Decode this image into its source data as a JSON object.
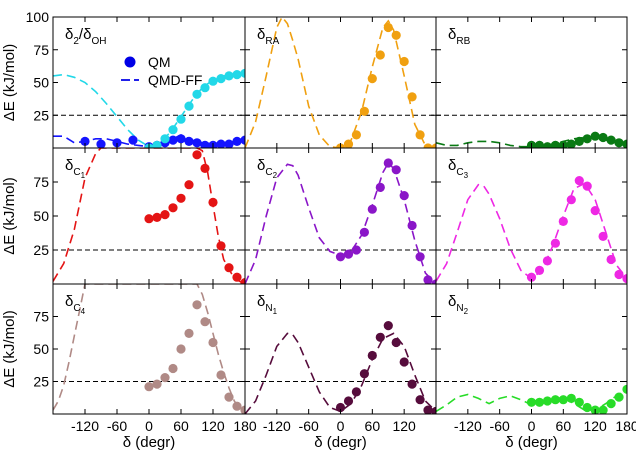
{
  "chart_data": {
    "type": "line",
    "layout": "3x3 panel grid",
    "legend": {
      "placement": "top-left panel, upper middle",
      "entries": [
        {
          "label": "QM",
          "marker": "filled-circle",
          "color": "#0000e6"
        },
        {
          "label": "QMD-FF",
          "marker": "dashed-line",
          "color": "#0000e6"
        }
      ]
    },
    "reference_line": {
      "y": 25,
      "style": "dashed",
      "color": "#000000"
    },
    "axes": {
      "xlabel": "δ (degr)",
      "ylabel": "ΔE (kJ/mol)",
      "xlim": [
        -180,
        180
      ],
      "xticks": [
        -120,
        -60,
        0,
        60,
        120,
        180
      ],
      "row_ylims": [
        [
          0,
          100
        ],
        [
          0,
          100
        ],
        [
          0,
          100
        ]
      ],
      "row_yticks": [
        [
          25,
          50,
          75,
          100
        ],
        [
          25,
          50,
          75
        ],
        [
          25,
          50,
          75
        ]
      ]
    },
    "panels": [
      {
        "row": 0,
        "col": 0,
        "title": "δ2/δOH",
        "color": "#0000e6",
        "series": [
          {
            "name": "QM",
            "color": "#1414ff",
            "x": [
              -120,
              -90,
              -60,
              -30,
              0,
              15,
              30,
              45,
              60,
              75,
              90,
              105,
              120,
              135,
              150,
              165,
              180
            ],
            "y": [
              5,
              3,
              4,
              6,
              1,
              2,
              4,
              6,
              7,
              5,
              4,
              2,
              2,
              3,
              3,
              5,
              6
            ]
          },
          {
            "name": "QMD-FF",
            "color": "#1414ff",
            "x": [
              -180,
              -160,
              -140,
              -120,
              -100,
              -80,
              -60,
              -40,
              -20,
              0,
              20,
              40,
              60,
              80,
              100,
              120,
              140,
              160,
              180
            ],
            "y": [
              9,
              9,
              4,
              5,
              7,
              7,
              5,
              3,
              2,
              1,
              2,
              6,
              10,
              6,
              4,
              3,
              4,
              5,
              7
            ]
          },
          {
            "name": "QM",
            "color": "#22d8e8",
            "x": [
              0,
              15,
              30,
              45,
              60,
              75,
              90,
              105,
              120,
              135,
              150,
              165,
              180
            ],
            "y": [
              0,
              2,
              7,
              14,
              22,
              32,
              41,
              46,
              51,
              53,
              55,
              56,
              57
            ]
          },
          {
            "name": "QMD-FF",
            "color": "#22d8e8",
            "x": [
              -180,
              -160,
              -140,
              -120,
              -100,
              -80,
              -60,
              -40,
              -20,
              0,
              20,
              40,
              60,
              80,
              100,
              120,
              140,
              160,
              180
            ],
            "y": [
              55,
              56,
              54,
              50,
              43,
              34,
              24,
              14,
              6,
              1,
              4,
              12,
              24,
              36,
              46,
              52,
              55,
              56,
              56
            ]
          }
        ]
      },
      {
        "row": 0,
        "col": 1,
        "title": "δRA",
        "color": "#f0a010",
        "series": [
          {
            "name": "QM",
            "x": [
              0,
              15,
              30,
              45,
              60,
              75,
              90,
              105,
              120,
              135,
              150,
              165,
              180
            ],
            "y": [
              0,
              3,
              10,
              28,
              53,
              71,
              92,
              86,
              66,
              39,
              10,
              0,
              0
            ]
          },
          {
            "name": "QMD-FF",
            "x": [
              -180,
              -160,
              -140,
              -120,
              -110,
              -100,
              -90,
              -80,
              -70,
              -60,
              -40,
              -20,
              0,
              20,
              40,
              60,
              80,
              90,
              100,
              120,
              140,
              160,
              180
            ],
            "y": [
              0,
              20,
              55,
              92,
              100,
              95,
              82,
              68,
              50,
              32,
              10,
              1,
              0,
              6,
              28,
              62,
              92,
              97,
              90,
              55,
              18,
              2,
              0
            ]
          }
        ]
      },
      {
        "row": 0,
        "col": 2,
        "title": "δRB",
        "color": "#0a7a14",
        "series": [
          {
            "name": "QM",
            "x": [
              0,
              15,
              30,
              45,
              60,
              75,
              90,
              105,
              120,
              135,
              150,
              165,
              180
            ],
            "y": [
              2,
              2,
              1,
              2,
              2,
              3,
              5,
              7,
              9,
              8,
              6,
              4,
              3
            ]
          },
          {
            "name": "QMD-FF",
            "x": [
              -180,
              -160,
              -140,
              -120,
              -100,
              -80,
              -60,
              -40,
              -20,
              0,
              20,
              40,
              60,
              80,
              100,
              120,
              140,
              160,
              180
            ],
            "y": [
              4,
              2,
              2,
              4,
              5,
              5,
              4,
              2,
              1,
              1,
              2,
              3,
              5,
              7,
              8,
              8,
              6,
              4,
              4
            ]
          }
        ]
      },
      {
        "row": 1,
        "col": 0,
        "title": "δC1",
        "color": "#e41414",
        "series": [
          {
            "name": "QM",
            "x": [
              0,
              15,
              30,
              45,
              60,
              75,
              90,
              105,
              120,
              135,
              150,
              165,
              180
            ],
            "y": [
              48,
              49,
              51,
              56,
              63,
              73,
              95,
              85,
              60,
              28,
              12,
              5,
              1
            ]
          },
          {
            "name": "QMD-FF",
            "x": [
              -180,
              -160,
              -140,
              -120,
              -100,
              -90,
              -20,
              0,
              20,
              40,
              60,
              80,
              90,
              100,
              110,
              120,
              130,
              140,
              160,
              180
            ],
            "y": [
              2,
              15,
              40,
              78,
              96,
              100,
              100,
              100,
              100,
              100,
              100,
              100,
              100,
              98,
              82,
              58,
              35,
              18,
              4,
              0
            ]
          }
        ]
      },
      {
        "row": 1,
        "col": 1,
        "title": "δC2",
        "color": "#8a16c8",
        "series": [
          {
            "name": "QM",
            "x": [
              0,
              15,
              30,
              45,
              60,
              75,
              90,
              105,
              120,
              135,
              150,
              165,
              180
            ],
            "y": [
              20,
              22,
              25,
              38,
              55,
              71,
              89,
              84,
              65,
              43,
              20,
              3,
              0
            ]
          },
          {
            "name": "QMD-FF",
            "x": [
              -180,
              -160,
              -140,
              -120,
              -100,
              -90,
              -80,
              -60,
              -40,
              -20,
              0,
              20,
              40,
              60,
              80,
              90,
              100,
              120,
              140,
              160,
              180
            ],
            "y": [
              0,
              18,
              50,
              78,
              88,
              87,
              80,
              56,
              34,
              24,
              21,
              24,
              36,
              58,
              82,
              89,
              85,
              62,
              32,
              8,
              0
            ]
          }
        ]
      },
      {
        "row": 1,
        "col": 2,
        "title": "δC3",
        "color": "#ee28e4",
        "series": [
          {
            "name": "QM",
            "x": [
              0,
              15,
              30,
              45,
              60,
              75,
              90,
              105,
              120,
              135,
              150,
              165,
              180
            ],
            "y": [
              5,
              10,
              17,
              30,
              46,
              62,
              76,
              72,
              54,
              35,
              18,
              7,
              4
            ]
          },
          {
            "name": "QMD-FF",
            "x": [
              -180,
              -160,
              -140,
              -120,
              -100,
              -90,
              -80,
              -60,
              -40,
              -20,
              0,
              20,
              40,
              60,
              80,
              100,
              120,
              140,
              160,
              180
            ],
            "y": [
              2,
              15,
              38,
              62,
              73,
              72,
              66,
              48,
              26,
              10,
              4,
              10,
              28,
              50,
              70,
              74,
              62,
              38,
              14,
              4
            ]
          }
        ]
      },
      {
        "row": 2,
        "col": 0,
        "title": "δC4",
        "color": "#b08a86",
        "series": [
          {
            "name": "QM",
            "x": [
              0,
              15,
              30,
              45,
              60,
              75,
              90,
              105,
              120,
              135,
              150,
              165,
              180
            ],
            "y": [
              21,
              23,
              28,
              35,
              50,
              62,
              84,
              71,
              55,
              30,
              13,
              6,
              3
            ]
          },
          {
            "name": "QMD-FF",
            "x": [
              -180,
              -170,
              -160,
              -150,
              -140,
              -130,
              -120,
              -110,
              -40,
              0,
              40,
              60,
              80,
              90,
              100,
              110,
              120,
              130,
              140,
              150,
              160,
              170,
              180
            ],
            "y": [
              3,
              10,
              22,
              40,
              60,
              80,
              100,
              100,
              100,
              100,
              100,
              100,
              100,
              100,
              92,
              78,
              62,
              46,
              32,
              20,
              10,
              4,
              1
            ]
          }
        ]
      },
      {
        "row": 2,
        "col": 1,
        "title": "δN1",
        "color": "#560c3c",
        "series": [
          {
            "name": "QM",
            "x": [
              0,
              15,
              30,
              45,
              60,
              75,
              90,
              105,
              120,
              135,
              150,
              165,
              180
            ],
            "y": [
              5,
              10,
              17,
              31,
              45,
              59,
              68,
              55,
              40,
              23,
              11,
              3,
              2
            ]
          },
          {
            "name": "QMD-FF",
            "x": [
              -180,
              -160,
              -140,
              -120,
              -100,
              -90,
              -80,
              -60,
              -40,
              -20,
              0,
              20,
              40,
              60,
              80,
              100,
              120,
              140,
              160,
              180
            ],
            "y": [
              0,
              10,
              30,
              52,
              62,
              61,
              55,
              36,
              17,
              5,
              2,
              8,
              22,
              42,
              58,
              62,
              52,
              30,
              10,
              2
            ]
          }
        ]
      },
      {
        "row": 2,
        "col": 2,
        "title": "δN2",
        "color": "#28dc28",
        "series": [
          {
            "name": "QM",
            "x": [
              0,
              15,
              30,
              45,
              60,
              75,
              90,
              105,
              120,
              135,
              150,
              165,
              180
            ],
            "y": [
              9,
              9,
              10,
              11,
              11,
              12,
              9,
              5,
              3,
              3,
              8,
              13,
              19
            ]
          },
          {
            "name": "QMD-FF",
            "x": [
              -180,
              -160,
              -140,
              -120,
              -100,
              -80,
              -60,
              -40,
              -20,
              0,
              20,
              40,
              60,
              80,
              100,
              120,
              140,
              160,
              180
            ],
            "y": [
              2,
              7,
              13,
              15,
              12,
              8,
              12,
              14,
              11,
              7,
              8,
              11,
              13,
              8,
              3,
              3,
              8,
              14,
              18
            ]
          }
        ]
      }
    ]
  },
  "page": {
    "ylabel_row": [
      "ΔE (kJ/mol)",
      "ΔE (kJ/mol)",
      "ΔE (kJ/mol)"
    ],
    "xlabel_col": [
      "δ (degr)",
      "δ (degr)",
      "δ (degr)"
    ],
    "panel_titles": [
      {
        "base": "δ",
        "sub": "2",
        "mid": "/δ",
        "sub2": "OH"
      },
      {
        "base": "δ",
        "sub": "RA"
      },
      {
        "base": "δ",
        "sub": "RB"
      },
      {
        "base": "δ",
        "sub": "C",
        "subsub": "1"
      },
      {
        "base": "δ",
        "sub": "C",
        "subsub": "2"
      },
      {
        "base": "δ",
        "sub": "C",
        "subsub": "3"
      },
      {
        "base": "δ",
        "sub": "C",
        "subsub": "4"
      },
      {
        "base": "δ",
        "sub": "N",
        "subsub": "1"
      },
      {
        "base": "δ",
        "sub": "N",
        "subsub": "2"
      }
    ]
  }
}
